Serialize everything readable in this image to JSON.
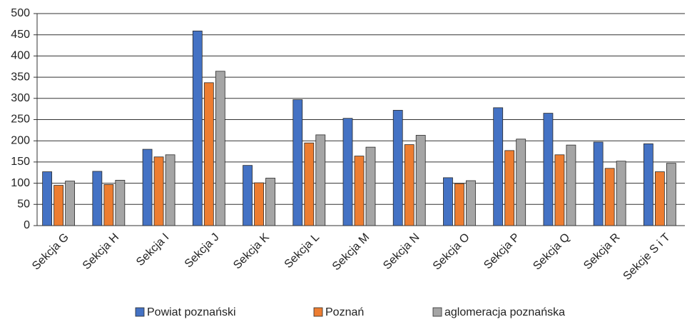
{
  "chart_data": {
    "type": "bar",
    "categories": [
      "Sekcja G",
      "Sekcja H",
      "Sekcja I",
      "Sekcja J",
      "Sekcja K",
      "Sekcja L",
      "Sekcja M",
      "Sekcja N",
      "Sekcja O",
      "Sekcja P",
      "Sekcja Q",
      "Sekcja R",
      "Sekcje S i T"
    ],
    "series": [
      {
        "name": "Powiat poznański",
        "color": "#4472c4",
        "values": [
          127,
          128,
          180,
          459,
          142,
          297,
          253,
          272,
          113,
          278,
          265,
          197,
          193
        ]
      },
      {
        "name": "Poznań",
        "color": "#ed7d31",
        "values": [
          95,
          97,
          162,
          337,
          101,
          195,
          164,
          191,
          99,
          177,
          167,
          135,
          127
        ]
      },
      {
        "name": "aglomeracja poznańska",
        "color": "#a5a5a5",
        "values": [
          105,
          107,
          167,
          364,
          112,
          214,
          185,
          213,
          106,
          204,
          190,
          152,
          147
        ]
      }
    ],
    "ylim": [
      0,
      500
    ],
    "yticks": [
      0,
      50,
      100,
      150,
      200,
      250,
      300,
      350,
      400,
      450,
      500
    ],
    "grid": true,
    "legend": "bottom"
  }
}
